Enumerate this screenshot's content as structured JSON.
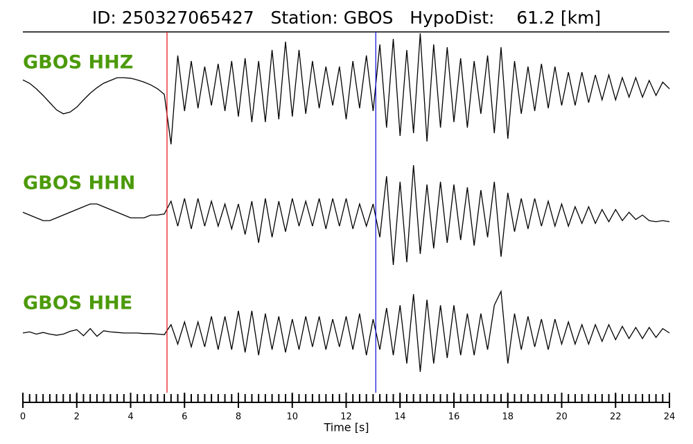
{
  "chart_data": {
    "type": "seismogram",
    "title": "ID: 250327065427   Station: GBOS   HypoDist:    61.2 [km]",
    "xlabel": "Time [s]",
    "xlim": [
      0,
      24
    ],
    "xticks": [
      0,
      2,
      4,
      6,
      8,
      10,
      12,
      14,
      16,
      18,
      20,
      22,
      24
    ],
    "xminor_step": 0.25,
    "label_color": "#4c9a0a",
    "picks": [
      {
        "x": 5.35,
        "color": "#e8191b"
      },
      {
        "x": 13.1,
        "color": "#1b1bd6"
      }
    ],
    "x": [
      0,
      0.25,
      0.5,
      0.75,
      1,
      1.25,
      1.5,
      1.75,
      2,
      2.25,
      2.5,
      2.75,
      3,
      3.25,
      3.5,
      3.75,
      4,
      4.25,
      4.5,
      4.75,
      5,
      5.25,
      5.5,
      5.75,
      6,
      6.25,
      6.5,
      6.75,
      7,
      7.25,
      7.5,
      7.75,
      8,
      8.25,
      8.5,
      8.75,
      9,
      9.25,
      9.5,
      9.75,
      10,
      10.25,
      10.5,
      10.75,
      11,
      11.25,
      11.5,
      11.75,
      12,
      12.25,
      12.5,
      12.75,
      13,
      13.25,
      13.5,
      13.75,
      14,
      14.25,
      14.5,
      14.75,
      15,
      15.25,
      15.5,
      15.75,
      16,
      16.25,
      16.5,
      16.75,
      17,
      17.25,
      17.5,
      17.75,
      18,
      18.25,
      18.5,
      18.75,
      19,
      19.25,
      19.5,
      19.75,
      20,
      20.25,
      20.5,
      20.75,
      21,
      21.25,
      21.5,
      21.75,
      22,
      22.25,
      22.5,
      22.75,
      23,
      23.25,
      23.5,
      23.75,
      24
    ],
    "series": [
      {
        "name": "GBOS HHZ",
        "color": "#000000",
        "values": [
          0.16,
          0.1,
          0.0,
          -0.12,
          -0.25,
          -0.38,
          -0.45,
          -0.42,
          -0.33,
          -0.2,
          -0.08,
          0.02,
          0.1,
          0.15,
          0.2,
          0.2,
          0.19,
          0.16,
          0.12,
          0.07,
          0.0,
          -0.1,
          -1.0,
          0.6,
          -0.4,
          0.5,
          -0.35,
          0.4,
          -0.3,
          0.45,
          -0.4,
          0.5,
          -0.5,
          0.55,
          -0.6,
          0.5,
          -0.6,
          0.7,
          -0.55,
          0.85,
          -0.5,
          0.7,
          -0.45,
          0.5,
          -0.35,
          0.4,
          -0.3,
          0.4,
          -0.55,
          0.5,
          -0.35,
          0.6,
          -0.4,
          0.8,
          -0.7,
          0.9,
          -0.85,
          0.7,
          -0.8,
          1.0,
          -0.95,
          0.8,
          -0.7,
          0.75,
          -0.6,
          0.55,
          -0.7,
          0.5,
          -0.45,
          0.6,
          -0.8,
          0.75,
          -0.9,
          0.5,
          -0.45,
          0.4,
          -0.4,
          0.45,
          -0.35,
          0.4,
          -0.3,
          0.3,
          -0.3,
          0.3,
          -0.25,
          0.25,
          -0.2,
          0.25,
          -0.2,
          0.2,
          -0.15,
          0.2,
          -0.15,
          0.15,
          -0.12,
          0.12,
          0.0
        ]
      },
      {
        "name": "GBOS HHN",
        "color": "#000000",
        "values": [
          0.05,
          0.0,
          -0.05,
          -0.1,
          -0.1,
          -0.05,
          0.0,
          0.05,
          0.1,
          0.15,
          0.2,
          0.2,
          0.15,
          0.1,
          0.05,
          0.0,
          -0.05,
          -0.05,
          -0.05,
          0.0,
          0.0,
          0.02,
          0.25,
          -0.2,
          0.3,
          -0.25,
          0.3,
          -0.2,
          0.25,
          -0.2,
          0.2,
          -0.25,
          0.2,
          -0.35,
          0.25,
          -0.5,
          0.3,
          -0.4,
          0.25,
          -0.3,
          0.3,
          -0.2,
          0.25,
          -0.2,
          0.3,
          -0.25,
          0.3,
          -0.2,
          0.3,
          -0.25,
          0.2,
          -0.2,
          0.2,
          -0.4,
          0.7,
          -0.9,
          0.6,
          -0.85,
          0.9,
          -0.7,
          0.55,
          -0.6,
          0.6,
          -0.5,
          0.55,
          -0.45,
          0.5,
          -0.55,
          0.45,
          -0.4,
          0.6,
          -0.75,
          0.4,
          -0.3,
          0.3,
          -0.25,
          0.3,
          -0.2,
          0.25,
          -0.2,
          0.2,
          -0.2,
          0.15,
          -0.15,
          0.15,
          -0.15,
          0.1,
          -0.12,
          0.1,
          -0.1,
          0.05,
          -0.08,
          0.0,
          -0.1,
          -0.12,
          -0.1,
          -0.12
        ]
      },
      {
        "name": "GBOS HHE",
        "color": "#000000",
        "values": [
          0.0,
          0.02,
          -0.02,
          0.01,
          -0.02,
          -0.04,
          -0.02,
          0.03,
          0.06,
          -0.05,
          0.08,
          -0.06,
          0.04,
          0.02,
          0.01,
          0.0,
          0.0,
          0.0,
          -0.01,
          -0.01,
          -0.02,
          -0.03,
          0.15,
          -0.2,
          0.2,
          -0.25,
          0.2,
          -0.25,
          0.3,
          -0.3,
          0.3,
          -0.3,
          0.4,
          -0.35,
          0.4,
          -0.4,
          0.35,
          -0.3,
          0.3,
          -0.35,
          0.25,
          -0.3,
          0.3,
          -0.25,
          0.3,
          -0.3,
          0.25,
          -0.25,
          0.3,
          -0.3,
          0.35,
          -0.4,
          0.25,
          -0.3,
          0.45,
          -0.4,
          0.5,
          -0.55,
          0.7,
          -0.7,
          0.6,
          -0.55,
          0.5,
          -0.45,
          0.5,
          -0.4,
          0.35,
          -0.4,
          0.35,
          -0.3,
          0.5,
          0.75,
          -0.55,
          0.35,
          -0.3,
          0.3,
          -0.25,
          0.25,
          -0.3,
          0.25,
          -0.2,
          0.2,
          -0.2,
          0.15,
          -0.2,
          0.15,
          -0.15,
          0.15,
          -0.12,
          0.12,
          -0.1,
          0.1,
          -0.1,
          0.1,
          -0.08,
          0.08,
          0.0
        ]
      }
    ]
  }
}
